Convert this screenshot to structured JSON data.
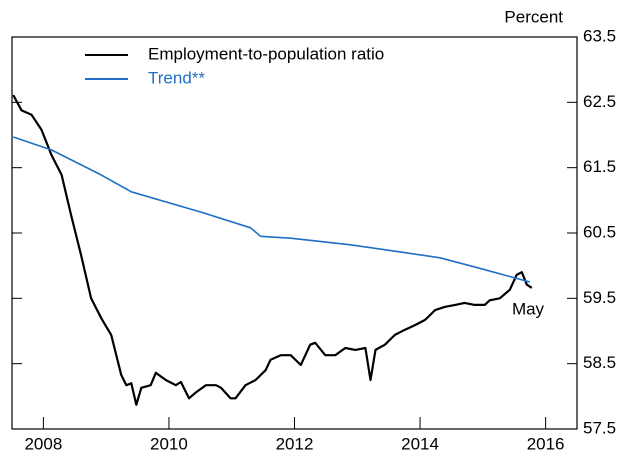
{
  "chart_data": {
    "type": "line",
    "y_axis_label": "Percent",
    "annotation": "May",
    "xlim": [
      2007.5,
      2016.5
    ],
    "xticks": [
      2008,
      2010,
      2012,
      2014,
      2016
    ],
    "ylim": [
      57.5,
      63.5
    ],
    "yticks": [
      57.5,
      58.5,
      59.5,
      60.5,
      61.5,
      62.5,
      63.5
    ],
    "legend": "upper left",
    "series": [
      {
        "name": "Employment-to-population ratio",
        "color": "#000000",
        "x": [
          2007.52,
          2007.65,
          2007.81,
          2007.97,
          2008.13,
          2008.29,
          2008.44,
          2008.6,
          2008.76,
          2008.92,
          2009.08,
          2009.24,
          2009.32,
          2009.4,
          2009.48,
          2009.56,
          2009.71,
          2009.79,
          2009.95,
          2010.11,
          2010.19,
          2010.32,
          2010.43,
          2010.59,
          2010.75,
          2010.83,
          2010.98,
          2011.06,
          2011.22,
          2011.38,
          2011.54,
          2011.62,
          2011.78,
          2011.94,
          2012.1,
          2012.25,
          2012.33,
          2012.49,
          2012.65,
          2012.81,
          2012.97,
          2013.13,
          2013.21,
          2013.29,
          2013.44,
          2013.6,
          2013.76,
          2013.92,
          2014.08,
          2014.24,
          2014.4,
          2014.56,
          2014.71,
          2014.87,
          2015.03,
          2015.11,
          2015.27,
          2015.43,
          2015.54,
          2015.62,
          2015.7,
          2015.78
        ],
        "values": [
          62.61,
          62.38,
          62.31,
          62.08,
          61.69,
          61.39,
          60.78,
          60.16,
          59.5,
          59.2,
          58.94,
          58.33,
          58.17,
          58.2,
          57.87,
          58.13,
          58.17,
          58.36,
          58.25,
          58.17,
          58.22,
          57.97,
          58.06,
          58.17,
          58.17,
          58.13,
          57.97,
          57.97,
          58.17,
          58.25,
          58.4,
          58.56,
          58.63,
          58.63,
          58.48,
          58.79,
          58.82,
          58.63,
          58.63,
          58.74,
          58.71,
          58.74,
          58.25,
          58.71,
          58.79,
          58.94,
          59.02,
          59.09,
          59.17,
          59.32,
          59.37,
          59.4,
          59.43,
          59.4,
          59.4,
          59.47,
          59.5,
          59.63,
          59.86,
          59.9,
          59.71,
          59.66
        ]
      },
      {
        "name": "Trend**",
        "color": "#1f6fc5",
        "x": [
          2007.52,
          2008.13,
          2008.92,
          2009.4,
          2010.51,
          2011.3,
          2011.46,
          2011.94,
          2012.89,
          2013.68,
          2014.32,
          2014.95,
          2015.75
        ],
        "values": [
          61.97,
          61.77,
          61.39,
          61.13,
          60.82,
          60.58,
          60.45,
          60.42,
          60.32,
          60.21,
          60.12,
          59.96,
          59.75
        ]
      }
    ]
  }
}
